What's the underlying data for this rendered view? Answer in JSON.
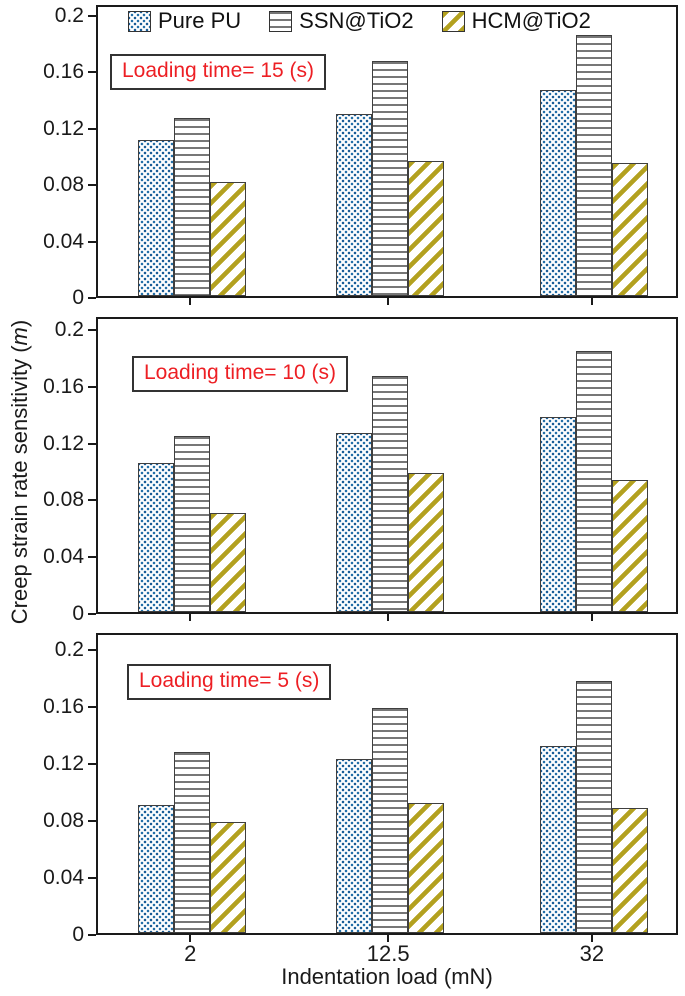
{
  "figure": {
    "ylabel_prefix": "Creep strain rate sensitivity (",
    "ylabel_italic": "m",
    "ylabel_suffix": ")",
    "xlabel": "Indentation load (mN)"
  },
  "legend": {
    "items": [
      {
        "label": "Pure PU",
        "swatch": "dots-blue"
      },
      {
        "label": "SSN@TiO2",
        "swatch": "hlines-gray"
      },
      {
        "label": "HCM@TiO2",
        "swatch": "diag-yellow"
      }
    ]
  },
  "chart_data": {
    "type": "bar",
    "categories": [
      "2",
      "12.5",
      "32"
    ],
    "xlabel": "Indentation load (mN)",
    "ylabel": "Creep strain rate sensitivity (m)",
    "ylim": [
      0,
      0.2
    ],
    "yticks": [
      "0",
      "0.04",
      "0.08",
      "0.12",
      "0.16",
      "0.2"
    ],
    "ytick_values": [
      0,
      0.04,
      0.08,
      0.12,
      0.16,
      0.2
    ],
    "grid": false,
    "legend_position": "top-inside-first-panel",
    "panels": [
      {
        "annotation": "Loading time= 15 (s)",
        "series": [
          {
            "name": "Pure PU",
            "values": [
              0.111,
              0.129,
              0.146
            ]
          },
          {
            "name": "SSN@TiO2",
            "values": [
              0.126,
              0.167,
              0.185
            ]
          },
          {
            "name": "HCM@TiO2",
            "values": [
              0.081,
              0.096,
              0.094
            ]
          }
        ]
      },
      {
        "annotation": "Loading time= 10 (s)",
        "series": [
          {
            "name": "Pure PU",
            "values": [
              0.105,
              0.126,
              0.137
            ]
          },
          {
            "name": "SSN@TiO2",
            "values": [
              0.124,
              0.166,
              0.184
            ]
          },
          {
            "name": "HCM@TiO2",
            "values": [
              0.07,
              0.098,
              0.093
            ]
          }
        ]
      },
      {
        "annotation": "Loading time= 5 (s)",
        "series": [
          {
            "name": "Pure PU",
            "values": [
              0.09,
              0.122,
              0.131
            ]
          },
          {
            "name": "SSN@TiO2",
            "values": [
              0.127,
              0.158,
              0.177
            ]
          },
          {
            "name": "HCM@TiO2",
            "values": [
              0.078,
              0.091,
              0.088
            ]
          }
        ]
      }
    ]
  },
  "colors": {
    "pu_dot": "#2470a8",
    "ssn_line": "#777777",
    "hcm_stripe": "#b3a11f",
    "bar_border": "#3f3f3f",
    "frame": "#1a1a1a",
    "annotation_red": "#ed1f24",
    "text": "#1a1a1a"
  }
}
